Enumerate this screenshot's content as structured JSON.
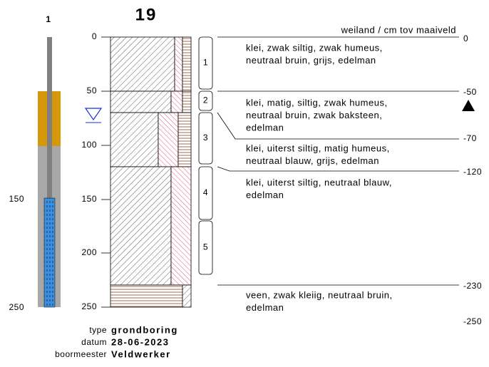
{
  "header": {
    "well_number": "1",
    "title": "19",
    "surface": "weiland / cm tov maaiveld"
  },
  "well_labels": [
    "150",
    "250"
  ],
  "depth_ticks": [
    "0",
    "50",
    "100",
    "150",
    "200",
    "250"
  ],
  "samples": [
    "1",
    "2",
    "3",
    "4",
    "5"
  ],
  "levels": [
    "0",
    "-50",
    "-70",
    "-120",
    "-230",
    "-250"
  ],
  "layers": [
    {
      "lines": [
        "klei, zwak siltig, zwak humeus,",
        "neutraal bruin, grijs, edelman"
      ]
    },
    {
      "lines": [
        "klei, matig, siltig, zwak humeus,",
        "neutraal bruin, zwak baksteen,",
        "edelman"
      ]
    },
    {
      "lines": [
        "klei, uiterst siltig, matig humeus,",
        "neutraal blauw, grijs, edelman"
      ]
    },
    {
      "lines": [
        "klei, uiterst siltig, neutraal blauw,",
        "edelman"
      ]
    },
    {
      "lines": [
        "veen, zwak kleiig, neutraal bruin,",
        "edelman"
      ]
    }
  ],
  "meta": [
    {
      "label": "type",
      "value": "grondboring"
    },
    {
      "label": "datum",
      "value": "28-06-2023"
    },
    {
      "label": "boormeester",
      "value": "Veldwerker"
    }
  ]
}
